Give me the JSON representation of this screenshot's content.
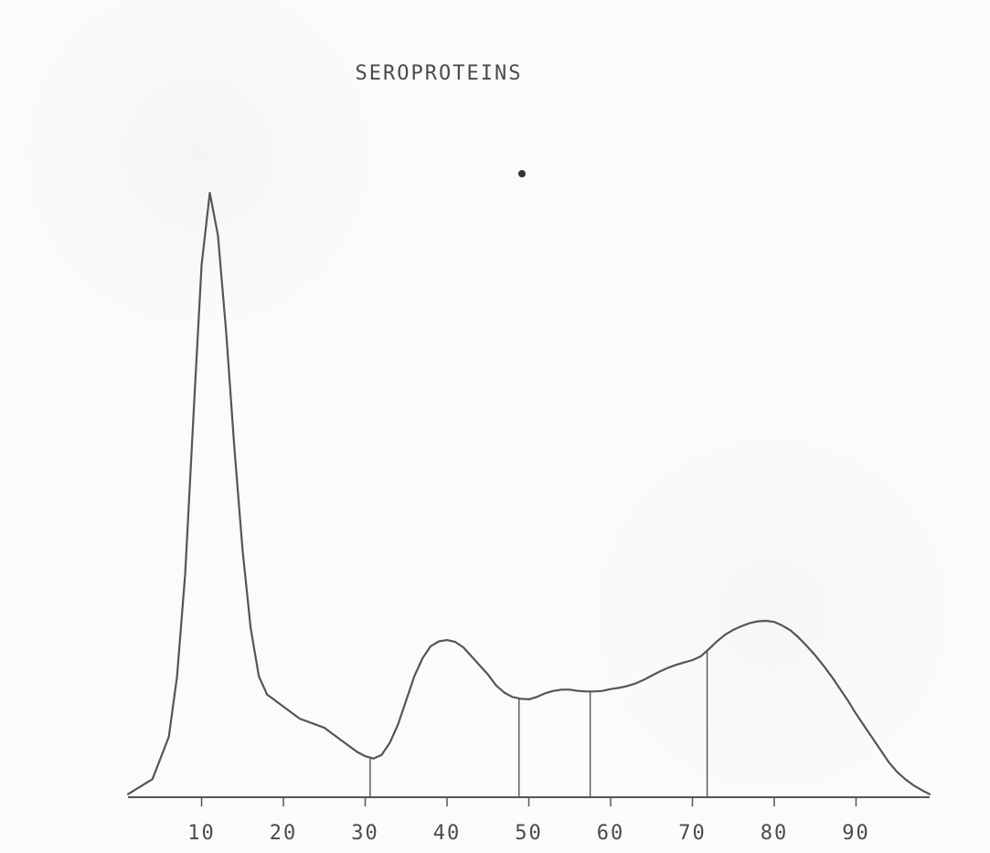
{
  "chart_data": {
    "type": "line",
    "title": "SEROPROTEINS",
    "xlabel": "",
    "ylabel": "",
    "xlim": [
      1,
      99
    ],
    "ylim": [
      0,
      100
    ],
    "x_ticks": [
      10,
      20,
      30,
      40,
      50,
      60,
      70,
      80,
      90
    ],
    "x_tick_labels": [
      "10",
      "20",
      "30",
      "40",
      "50",
      "60",
      "70",
      "80",
      "90"
    ],
    "grid": false,
    "legend": "none",
    "line_color": "#555555",
    "series": [
      {
        "x": [
          1,
          4,
          6,
          7,
          8,
          9,
          10,
          11,
          12,
          13,
          14,
          15,
          16,
          17,
          18,
          19,
          20,
          21,
          22,
          23,
          24,
          25,
          26,
          27,
          28,
          29,
          30,
          31,
          32,
          33,
          34,
          35,
          36,
          37,
          38,
          39,
          40,
          41,
          42,
          43,
          44,
          45,
          46,
          47,
          48,
          49,
          50,
          51,
          52,
          53,
          54,
          55,
          56,
          57,
          58,
          59,
          60,
          61,
          62,
          63,
          64,
          65,
          66,
          67,
          68,
          69,
          70,
          71,
          72,
          73,
          74,
          75,
          76,
          77,
          78,
          79,
          80,
          81,
          82,
          83,
          84,
          85,
          86,
          87,
          88,
          89,
          90,
          91,
          92,
          93,
          94,
          95,
          96,
          97,
          98,
          99
        ],
        "y": [
          0.5,
          3,
          10,
          20,
          37,
          63,
          88,
          100,
          93,
          77,
          58,
          41,
          28,
          20,
          17,
          16,
          15,
          14,
          13,
          12.5,
          12,
          11.5,
          10.5,
          9.5,
          8.5,
          7.5,
          6.8,
          6.4,
          7,
          9,
          12,
          16,
          20,
          23,
          25,
          25.8,
          26,
          25.7,
          24.8,
          23.3,
          21.8,
          20.3,
          18.5,
          17.3,
          16.6,
          16.3,
          16.2,
          16.6,
          17.2,
          17.6,
          17.8,
          17.8,
          17.6,
          17.5,
          17.5,
          17.6,
          17.9,
          18.1,
          18.4,
          18.8,
          19.4,
          20.1,
          20.8,
          21.4,
          21.9,
          22.3,
          22.7,
          23.3,
          24.5,
          25.8,
          26.9,
          27.7,
          28.3,
          28.8,
          29.1,
          29.2,
          29,
          28.4,
          27.6,
          26.4,
          25,
          23.5,
          21.8,
          20,
          18,
          16,
          13.8,
          11.8,
          9.8,
          7.8,
          5.8,
          4.2,
          3,
          2,
          1.2,
          0.5
        ]
      }
    ],
    "dividers_x": [
      30.6,
      48.8,
      57.5,
      71.8
    ]
  }
}
